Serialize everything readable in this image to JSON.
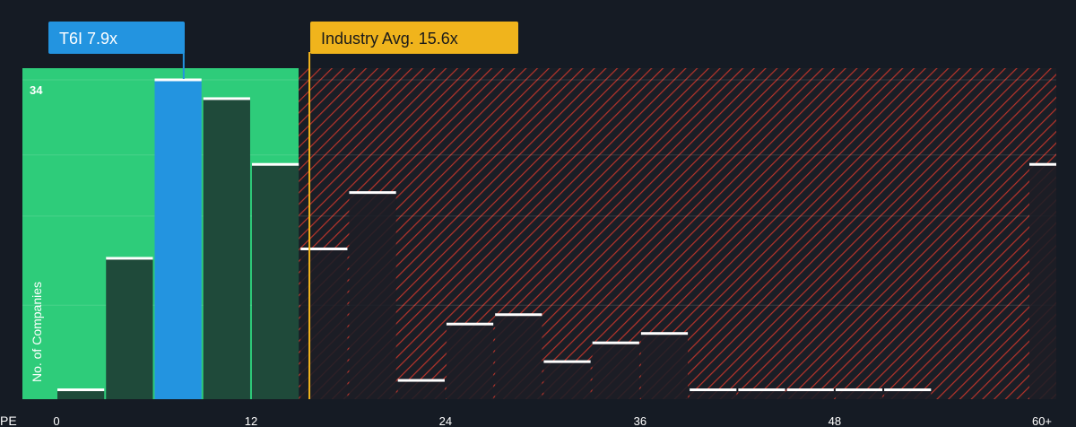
{
  "chart_data": {
    "type": "bar",
    "xlabel": "PE",
    "ylabel": "No. of Companies",
    "x_tick_labels": [
      "0",
      "12",
      "24",
      "36",
      "48",
      "60+"
    ],
    "x_tick_values": [
      0,
      12,
      24,
      36,
      48,
      60
    ],
    "y_tick_labels": [
      "34"
    ],
    "y_tick_values": [
      34
    ],
    "xlim": [
      0,
      62.5
    ],
    "ylim": [
      0,
      34
    ],
    "grid": true,
    "bin_width": 3,
    "bars": [
      {
        "start": 0,
        "value": 1
      },
      {
        "start": 3,
        "value": 15
      },
      {
        "start": 6,
        "value": 34
      },
      {
        "start": 9,
        "value": 32
      },
      {
        "start": 12,
        "value": 25
      },
      {
        "start": 15,
        "value": 16
      },
      {
        "start": 18,
        "value": 22
      },
      {
        "start": 21,
        "value": 2
      },
      {
        "start": 24,
        "value": 8
      },
      {
        "start": 27,
        "value": 9
      },
      {
        "start": 30,
        "value": 4
      },
      {
        "start": 33,
        "value": 6
      },
      {
        "start": 36,
        "value": 7
      },
      {
        "start": 39,
        "value": 1
      },
      {
        "start": 42,
        "value": 1
      },
      {
        "start": 45,
        "value": 1
      },
      {
        "start": 48,
        "value": 1
      },
      {
        "start": 51,
        "value": 1
      },
      {
        "start": 60,
        "value": 25
      }
    ],
    "company": {
      "label": "T6I 7.9x",
      "value": 7.9
    },
    "industry": {
      "label": "Industry Avg. 15.6x",
      "value": 15.6
    },
    "colors": {
      "background": "#151b24",
      "green_zone": "#2ecc7a",
      "dark_bar": "#1f4a3a",
      "highlight_bar": "#2394e0",
      "red_hatch": "#c0392b",
      "industry_gold": "#f0b41c",
      "bar_cap": "#ffffff"
    }
  }
}
